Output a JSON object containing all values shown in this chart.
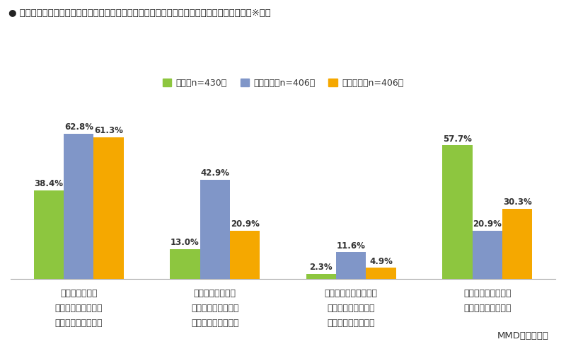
{
  "title": "● マクドナルドやスターバックスなどが提供しているモバイルオーダーの利用経験（複数）　※国別",
  "legend_labels": [
    "日本（n=430）",
    "アメリカ（n=406）",
    "フランス（n=406）"
  ],
  "colors": [
    "#8dc63f",
    "#8096c8",
    "#f5a800"
  ],
  "categories": [
    "マクドナルドの\nモバイルオーダーを\n利用したことがある",
    "スターバックスの\nモバイルオーダーを\n利用したことがある",
    "それ以外のサービスの\nモバイルオーダーを\n利用したことがある",
    "モバイルオーダーは\n利用したことがない"
  ],
  "values": {
    "Japan": [
      38.4,
      13.0,
      2.3,
      57.7
    ],
    "America": [
      62.8,
      42.9,
      11.6,
      20.9
    ],
    "France": [
      61.3,
      20.9,
      4.9,
      30.3
    ]
  },
  "ylim": [
    0,
    75
  ],
  "footer": "MMD研究所調べ",
  "bg_color": "#ffffff",
  "label_fontsize": 8.5,
  "tick_fontsize": 9,
  "title_fontsize": 9.5,
  "legend_fontsize": 9,
  "footer_fontsize": 9.5,
  "bar_width": 0.22
}
